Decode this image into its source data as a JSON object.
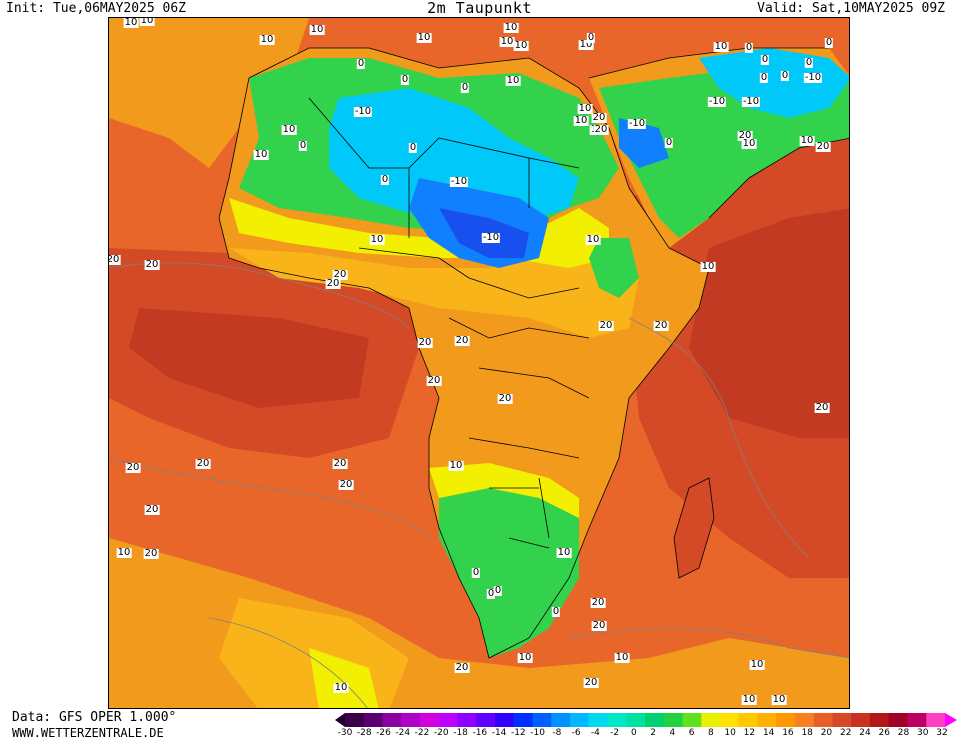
{
  "header": {
    "init": "Init: Tue,06MAY2025 06Z",
    "title": "2m Taupunkt",
    "valid": "Valid: Sat,10MAY2025 09Z"
  },
  "footer": {
    "source": "Data: GFS OPER 1.000°",
    "website": "WWW.WETTERZENTRALE.DE"
  },
  "legend": {
    "ticks": [
      "-30",
      "-28",
      "-26",
      "-24",
      "-22",
      "-20",
      "-18",
      "-16",
      "-14",
      "-12",
      "-10",
      "-8",
      "-6",
      "-4",
      "-2",
      "0",
      "2",
      "4",
      "6",
      "8",
      "10",
      "12",
      "14",
      "16",
      "18",
      "20",
      "22",
      "24",
      "26",
      "28",
      "30",
      "32"
    ],
    "colors": [
      "#3a0048",
      "#5c0070",
      "#8a00a0",
      "#b000c8",
      "#d000e0",
      "#c000ff",
      "#9000ff",
      "#6000ff",
      "#3000ff",
      "#0030ff",
      "#0060ff",
      "#0090ff",
      "#00b8ff",
      "#00d8f0",
      "#00e8c8",
      "#00e0a0",
      "#00d070",
      "#20d040",
      "#60e020",
      "#e8f000",
      "#ffe000",
      "#ffc800",
      "#ffb000",
      "#ff9800",
      "#f88020",
      "#e86028",
      "#d84828",
      "#c83020",
      "#b01818",
      "#a00028",
      "#c00060",
      "#ff40c0"
    ],
    "under_color": "#200030",
    "over_color": "#ff00ff"
  },
  "map": {
    "colors": {
      "ocean_warm": "#e8662a",
      "ocean_hot": "#d54a26",
      "ocean_very_hot": "#c23a22",
      "land_orange": "#f29a1c",
      "land_light_orange": "#f8b418",
      "land_yellow": "#f2ef00",
      "land_green": "#32d24c",
      "land_teal": "#00d8b0",
      "land_cyan": "#00c8f8",
      "land_blue": "#1080ff",
      "land_deep_blue": "#1850f0",
      "border": "#000000",
      "contour": "#808080"
    },
    "contour_labels": [
      {
        "t": "10"
      },
      {
        "t": "10"
      },
      {
        "t": "10"
      },
      {
        "t": "10"
      },
      {
        "t": "10"
      },
      {
        "t": "10"
      },
      {
        "t": "10"
      },
      {
        "t": "10"
      },
      {
        "t": "10"
      },
      {
        "t": "10"
      },
      {
        "t": "0"
      },
      {
        "t": "0"
      },
      {
        "t": "0"
      },
      {
        "t": "0"
      },
      {
        "t": "0"
      },
      {
        "t": "0"
      },
      {
        "t": "0"
      },
      {
        "t": "0"
      },
      {
        "t": "0"
      },
      {
        "t": "0"
      },
      {
        "t": "-10"
      },
      {
        "t": "-10"
      },
      {
        "t": "-10"
      },
      {
        "t": "-10"
      },
      {
        "t": "-10"
      },
      {
        "t": "-10"
      },
      {
        "t": "-10"
      },
      {
        "t": "10"
      },
      {
        "t": "0"
      },
      {
        "t": "0"
      },
      {
        "t": "10"
      },
      {
        "t": "20"
      },
      {
        "t": "20"
      },
      {
        "t": "10"
      },
      {
        "t": "20"
      },
      {
        "t": "10"
      },
      {
        "t": "0"
      },
      {
        "t": "10"
      },
      {
        "t": "10"
      },
      {
        "t": "10"
      },
      {
        "t": "10"
      },
      {
        "t": "0"
      },
      {
        "t": "10"
      },
      {
        "t": "20"
      },
      {
        "t": "20"
      },
      {
        "t": "20"
      },
      {
        "t": "20"
      },
      {
        "t": "20"
      },
      {
        "t": "20"
      },
      {
        "t": "20"
      },
      {
        "t": "20"
      },
      {
        "t": "20"
      },
      {
        "t": "20"
      },
      {
        "t": "20"
      },
      {
        "t": "20"
      },
      {
        "t": "20"
      },
      {
        "t": "20"
      },
      {
        "t": "20"
      },
      {
        "t": "20"
      },
      {
        "t": "10"
      },
      {
        "t": "20"
      },
      {
        "t": "0"
      },
      {
        "t": "0"
      },
      {
        "t": "0"
      },
      {
        "t": "10"
      },
      {
        "t": "0"
      },
      {
        "t": "20"
      },
      {
        "t": "20"
      },
      {
        "t": "20"
      },
      {
        "t": "10"
      },
      {
        "t": "20"
      },
      {
        "t": "10"
      },
      {
        "t": "10"
      },
      {
        "t": "10"
      },
      {
        "t": "10"
      },
      {
        "t": "10"
      },
      {
        "t": "20"
      },
      {
        "t": "10"
      },
      {
        "t": "10"
      },
      {
        "t": "10"
      }
    ]
  }
}
